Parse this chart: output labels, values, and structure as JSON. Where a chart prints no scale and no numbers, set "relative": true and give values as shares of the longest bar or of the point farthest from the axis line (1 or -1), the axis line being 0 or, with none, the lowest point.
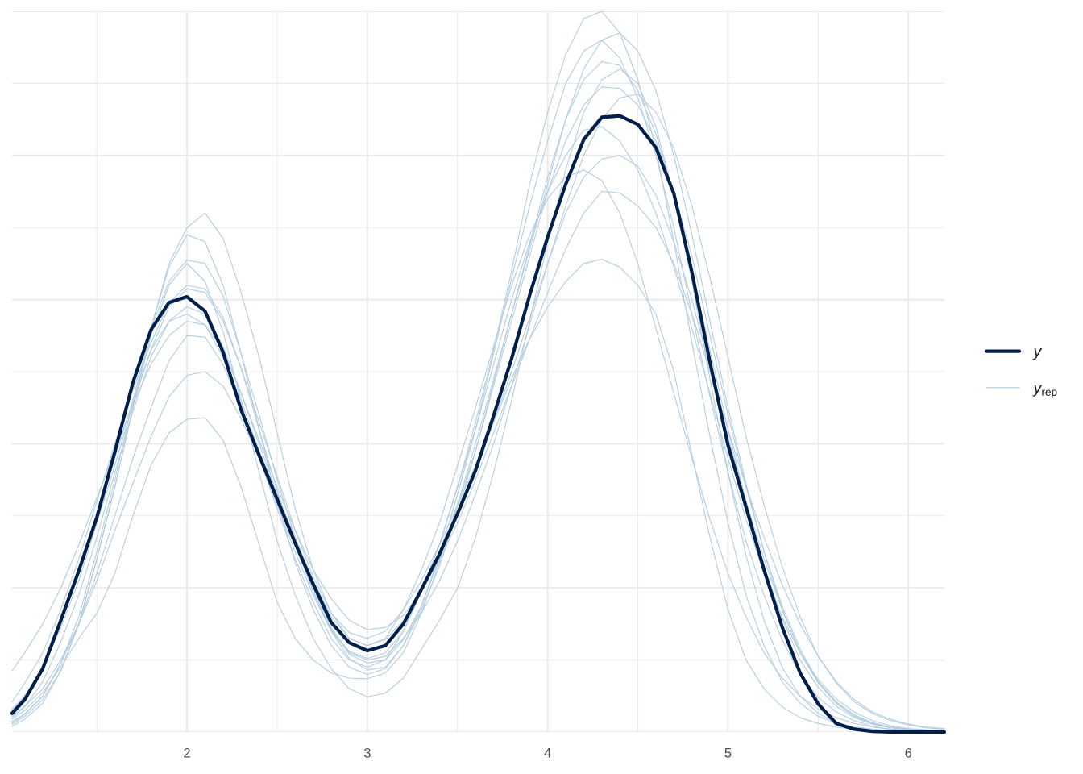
{
  "chart_data": {
    "type": "line",
    "relative": true,
    "x": [
      1.03,
      1.1,
      1.2,
      1.3,
      1.4,
      1.5,
      1.6,
      1.7,
      1.8,
      1.9,
      2.0,
      2.1,
      2.2,
      2.3,
      2.4,
      2.5,
      2.6,
      2.7,
      2.8,
      2.9,
      3.0,
      3.1,
      3.2,
      3.3,
      3.4,
      3.5,
      3.6,
      3.7,
      3.8,
      3.9,
      4.0,
      4.1,
      4.2,
      4.3,
      4.4,
      4.5,
      4.6,
      4.7,
      4.8,
      4.9,
      5.0,
      5.1,
      5.2,
      5.3,
      5.4,
      5.5,
      5.6,
      5.7,
      5.8,
      5.9,
      6.0,
      6.1,
      6.2
    ],
    "xlim": [
      1.03,
      6.2
    ],
    "xticks": [
      {
        "value": 1.5,
        "label": null
      },
      2,
      {
        "value": 2.5,
        "label": null
      },
      3,
      {
        "value": 3.5,
        "label": null
      },
      4,
      {
        "value": 4.5,
        "label": null
      },
      5,
      {
        "value": 5.5,
        "label": null
      },
      6
    ],
    "grid": true,
    "legend": "right",
    "tick_labels": "x",
    "series": [
      {
        "name": "y",
        "color": "#011f4b",
        "values": [
          0.026,
          0.045,
          0.088,
          0.155,
          0.224,
          0.298,
          0.389,
          0.485,
          0.558,
          0.596,
          0.604,
          0.584,
          0.527,
          0.447,
          0.384,
          0.323,
          0.262,
          0.205,
          0.152,
          0.124,
          0.113,
          0.12,
          0.15,
          0.198,
          0.247,
          0.303,
          0.363,
          0.439,
          0.518,
          0.606,
          0.687,
          0.76,
          0.822,
          0.853,
          0.855,
          0.843,
          0.811,
          0.747,
          0.638,
          0.513,
          0.398,
          0.312,
          0.225,
          0.146,
          0.082,
          0.039,
          0.012,
          0.004,
          0.001,
          0,
          0,
          0,
          0
        ]
      },
      {
        "name": "y$_{rep}$",
        "color": "#b3cde0",
        "values": [
          0.015,
          0.025,
          0.05,
          0.095,
          0.15,
          0.22,
          0.3,
          0.38,
          0.45,
          0.515,
          0.55,
          0.548,
          0.51,
          0.45,
          0.38,
          0.31,
          0.24,
          0.18,
          0.13,
          0.1,
          0.09,
          0.1,
          0.14,
          0.195,
          0.26,
          0.34,
          0.43,
          0.53,
          0.64,
          0.76,
          0.86,
          0.94,
          0.99,
          1.0,
          0.97,
          0.905,
          0.81,
          0.68,
          0.54,
          0.41,
          0.29,
          0.19,
          0.12,
          0.07,
          0.04,
          0.022,
          0.012,
          0.007,
          0.004,
          0.002,
          0.001,
          0.001,
          0.001
        ]
      },
      {
        "color": "#b3cde0",
        "values": [
          0.032,
          0.05,
          0.09,
          0.145,
          0.21,
          0.29,
          0.37,
          0.455,
          0.53,
          0.59,
          0.615,
          0.61,
          0.57,
          0.505,
          0.43,
          0.355,
          0.28,
          0.215,
          0.165,
          0.138,
          0.13,
          0.14,
          0.17,
          0.21,
          0.26,
          0.315,
          0.37,
          0.43,
          0.49,
          0.545,
          0.59,
          0.625,
          0.65,
          0.656,
          0.645,
          0.62,
          0.58,
          0.5,
          0.385,
          0.27,
          0.17,
          0.1,
          0.06,
          0.035,
          0.02,
          0.012,
          0.007,
          0.004,
          0.003,
          0.002,
          0.002,
          0.001,
          0.001
        ]
      },
      {
        "color": "#b3cde0",
        "values": [
          0.011,
          0.022,
          0.045,
          0.085,
          0.15,
          0.24,
          0.34,
          0.45,
          0.56,
          0.65,
          0.7,
          0.72,
          0.685,
          0.61,
          0.52,
          0.415,
          0.31,
          0.225,
          0.165,
          0.13,
          0.12,
          0.128,
          0.155,
          0.195,
          0.245,
          0.3,
          0.36,
          0.43,
          0.5,
          0.575,
          0.65,
          0.72,
          0.77,
          0.795,
          0.8,
          0.785,
          0.745,
          0.68,
          0.6,
          0.505,
          0.41,
          0.32,
          0.24,
          0.17,
          0.11,
          0.068,
          0.04,
          0.022,
          0.012,
          0.007,
          0.004,
          0.002,
          0.001
        ]
      },
      {
        "color": "#b3cde0",
        "values": [
          0.018,
          0.03,
          0.055,
          0.09,
          0.13,
          0.165,
          0.22,
          0.3,
          0.37,
          0.415,
          0.434,
          0.436,
          0.405,
          0.34,
          0.26,
          0.18,
          0.13,
          0.1,
          0.082,
          0.075,
          0.074,
          0.082,
          0.11,
          0.165,
          0.235,
          0.315,
          0.39,
          0.48,
          0.57,
          0.66,
          0.75,
          0.82,
          0.87,
          0.895,
          0.893,
          0.87,
          0.82,
          0.75,
          0.66,
          0.55,
          0.44,
          0.34,
          0.25,
          0.175,
          0.115,
          0.07,
          0.04,
          0.022,
          0.012,
          0.007,
          0.004,
          0.003,
          0.002
        ]
      },
      {
        "color": "#b3cde0",
        "values": [
          0.008,
          0.018,
          0.04,
          0.085,
          0.15,
          0.24,
          0.34,
          0.45,
          0.55,
          0.62,
          0.65,
          0.625,
          0.555,
          0.46,
          0.36,
          0.265,
          0.19,
          0.13,
          0.088,
          0.06,
          0.049,
          0.054,
          0.075,
          0.115,
          0.155,
          0.2,
          0.27,
          0.36,
          0.46,
          0.57,
          0.68,
          0.78,
          0.86,
          0.905,
          0.92,
          0.9,
          0.84,
          0.745,
          0.625,
          0.49,
          0.36,
          0.245,
          0.155,
          0.09,
          0.05,
          0.026,
          0.013,
          0.006,
          0.003,
          0.001,
          0.001,
          0.001,
          0.001
        ]
      },
      {
        "color": "#b3cde0",
        "values": [
          0.085,
          0.11,
          0.15,
          0.2,
          0.26,
          0.325,
          0.39,
          0.455,
          0.51,
          0.55,
          0.57,
          0.565,
          0.53,
          0.47,
          0.405,
          0.34,
          0.28,
          0.225,
          0.185,
          0.155,
          0.142,
          0.145,
          0.162,
          0.195,
          0.24,
          0.29,
          0.35,
          0.415,
          0.48,
          0.545,
          0.61,
          0.67,
          0.72,
          0.75,
          0.748,
          0.73,
          0.7,
          0.65,
          0.58,
          0.5,
          0.42,
          0.34,
          0.27,
          0.205,
          0.15,
          0.105,
          0.07,
          0.045,
          0.028,
          0.018,
          0.011,
          0.007,
          0.005
        ]
      },
      {
        "color": "#b3cde0",
        "values": [
          0.028,
          0.05,
          0.09,
          0.15,
          0.22,
          0.3,
          0.38,
          0.46,
          0.53,
          0.57,
          0.58,
          0.565,
          0.52,
          0.46,
          0.39,
          0.33,
          0.27,
          0.21,
          0.16,
          0.13,
          0.12,
          0.13,
          0.17,
          0.225,
          0.29,
          0.37,
          0.45,
          0.535,
          0.62,
          0.69,
          0.74,
          0.77,
          0.78,
          0.765,
          0.72,
          0.65,
          0.56,
          0.47,
          0.38,
          0.295,
          0.22,
          0.16,
          0.11,
          0.075,
          0.05,
          0.032,
          0.02,
          0.012,
          0.007,
          0.004,
          0.002,
          0.001,
          0.001
        ]
      },
      {
        "color": "#b3cde0",
        "values": [
          0.02,
          0.035,
          0.07,
          0.125,
          0.19,
          0.27,
          0.36,
          0.445,
          0.52,
          0.57,
          0.59,
          0.58,
          0.535,
          0.47,
          0.4,
          0.33,
          0.26,
          0.195,
          0.14,
          0.11,
          0.1,
          0.105,
          0.13,
          0.165,
          0.21,
          0.265,
          0.33,
          0.4,
          0.48,
          0.565,
          0.65,
          0.73,
          0.8,
          0.85,
          0.88,
          0.885,
          0.86,
          0.81,
          0.73,
          0.63,
          0.52,
          0.41,
          0.315,
          0.23,
          0.16,
          0.105,
          0.068,
          0.042,
          0.026,
          0.016,
          0.01,
          0.006,
          0.004
        ]
      },
      {
        "color": "#b3cde0",
        "values": [
          0.03,
          0.05,
          0.09,
          0.15,
          0.22,
          0.3,
          0.39,
          0.48,
          0.56,
          0.625,
          0.655,
          0.65,
          0.605,
          0.525,
          0.44,
          0.35,
          0.27,
          0.2,
          0.145,
          0.108,
          0.096,
          0.1,
          0.128,
          0.175,
          0.24,
          0.315,
          0.4,
          0.49,
          0.58,
          0.675,
          0.77,
          0.85,
          0.905,
          0.93,
          0.925,
          0.89,
          0.83,
          0.745,
          0.64,
          0.53,
          0.42,
          0.32,
          0.23,
          0.158,
          0.1,
          0.062,
          0.036,
          0.02,
          0.011,
          0.006,
          0.003,
          0.002,
          0.001
        ]
      },
      {
        "color": "#b3cde0",
        "values": [
          0.042,
          0.068,
          0.11,
          0.17,
          0.24,
          0.32,
          0.4,
          0.475,
          0.54,
          0.595,
          0.62,
          0.615,
          0.575,
          0.505,
          0.42,
          0.335,
          0.26,
          0.195,
          0.142,
          0.112,
          0.102,
          0.11,
          0.14,
          0.195,
          0.26,
          0.34,
          0.42,
          0.51,
          0.6,
          0.68,
          0.75,
          0.8,
          0.835,
          0.84,
          0.82,
          0.78,
          0.72,
          0.645,
          0.56,
          0.47,
          0.38,
          0.295,
          0.22,
          0.16,
          0.11,
          0.073,
          0.046,
          0.028,
          0.016,
          0.009,
          0.005,
          0.003,
          0.002
        ]
      },
      {
        "color": "#b3cde0",
        "values": [
          0.012,
          0.025,
          0.05,
          0.095,
          0.16,
          0.25,
          0.35,
          0.46,
          0.56,
          0.645,
          0.69,
          0.68,
          0.62,
          0.525,
          0.42,
          0.32,
          0.235,
          0.17,
          0.12,
          0.09,
          0.08,
          0.088,
          0.12,
          0.175,
          0.245,
          0.33,
          0.42,
          0.525,
          0.63,
          0.73,
          0.82,
          0.9,
          0.945,
          0.96,
          0.935,
          0.88,
          0.8,
          0.7,
          0.58,
          0.465,
          0.36,
          0.265,
          0.19,
          0.128,
          0.08,
          0.048,
          0.028,
          0.016,
          0.008,
          0.004,
          0.002,
          0.001,
          0.001
        ]
      },
      {
        "color": "#b3cde0",
        "values": [
          0.022,
          0.036,
          0.06,
          0.1,
          0.15,
          0.21,
          0.28,
          0.345,
          0.41,
          0.465,
          0.495,
          0.5,
          0.48,
          0.435,
          0.38,
          0.315,
          0.25,
          0.19,
          0.14,
          0.102,
          0.086,
          0.09,
          0.12,
          0.17,
          0.23,
          0.305,
          0.39,
          0.485,
          0.58,
          0.67,
          0.76,
          0.85,
          0.92,
          0.96,
          0.97,
          0.945,
          0.89,
          0.8,
          0.69,
          0.57,
          0.45,
          0.345,
          0.25,
          0.17,
          0.11,
          0.07,
          0.042,
          0.024,
          0.013,
          0.007,
          0.004,
          0.002,
          0.001
        ]
      }
    ]
  }
}
